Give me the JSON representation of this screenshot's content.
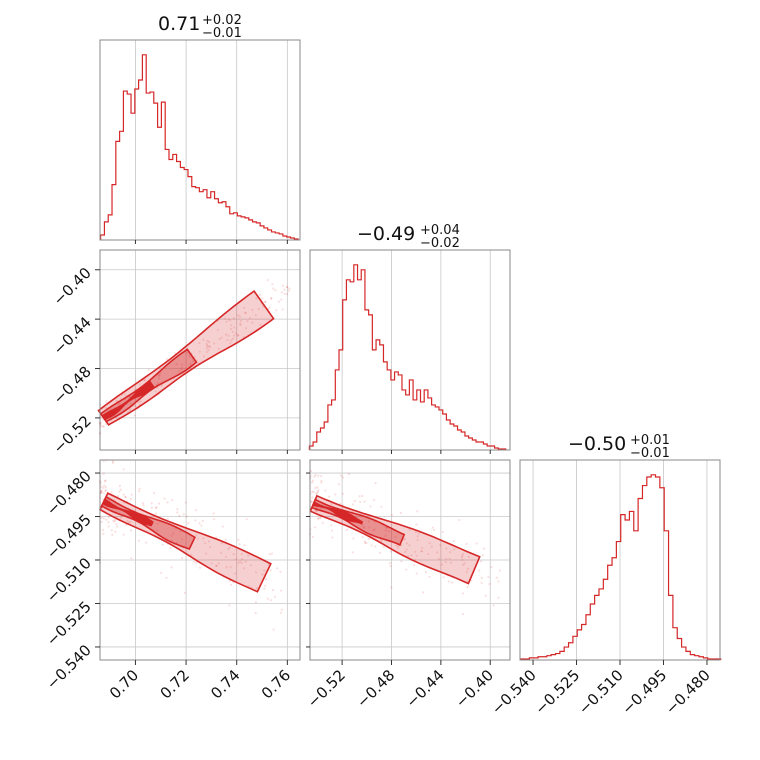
{
  "chart_data": {
    "type": "corner",
    "accent_color": "#d62728",
    "parameters": [
      {
        "title_main": "0.71",
        "title_plus": "+0.02",
        "title_minus": "−0.01",
        "range": [
          0.686,
          0.765
        ],
        "ticks": [
          0.7,
          0.72,
          0.74,
          0.76
        ],
        "tick_labels": [
          "0.70",
          "0.72",
          "0.74",
          "0.76"
        ],
        "hist_x": [
          0.687,
          0.6885,
          0.69,
          0.6915,
          0.693,
          0.6945,
          0.696,
          0.6975,
          0.699,
          0.7005,
          0.702,
          0.7035,
          0.705,
          0.7065,
          0.708,
          0.7095,
          0.711,
          0.7125,
          0.714,
          0.7155,
          0.717,
          0.7185,
          0.72,
          0.7215,
          0.723,
          0.7245,
          0.726,
          0.7275,
          0.729,
          0.7305,
          0.732,
          0.7335,
          0.735,
          0.7365,
          0.738,
          0.7395,
          0.741,
          0.7425,
          0.744,
          0.7455,
          0.747,
          0.7485,
          0.75,
          0.7515,
          0.753,
          0.7545,
          0.756,
          0.7575,
          0.759,
          0.7605,
          0.762,
          0.7635
        ],
        "hist_y": [
          5,
          18,
          25,
          55,
          98,
          108,
          148,
          145,
          126,
          150,
          159,
          184,
          146,
          147,
          136,
          112,
          137,
          90,
          80,
          85,
          78,
          72,
          70,
          63,
          53,
          52,
          48,
          50,
          42,
          48,
          41,
          37,
          38,
          33,
          26,
          27,
          24,
          23,
          22,
          20,
          18,
          17,
          14,
          12,
          10,
          8,
          7,
          6,
          4,
          3,
          2,
          1
        ]
      },
      {
        "title_main": "−0.49",
        "title_plus": "+0.04",
        "title_minus": "−0.02",
        "range": [
          -0.546,
          -0.384
        ],
        "ticks": [
          -0.52,
          -0.48,
          -0.44,
          -0.4
        ],
        "tick_labels": [
          "−0.52",
          "−0.48",
          "−0.44",
          "−0.40"
        ],
        "hist_x": [
          -0.545,
          -0.542,
          -0.539,
          -0.536,
          -0.533,
          -0.53,
          -0.527,
          -0.524,
          -0.521,
          -0.518,
          -0.515,
          -0.512,
          -0.509,
          -0.506,
          -0.503,
          -0.5,
          -0.497,
          -0.494,
          -0.491,
          -0.488,
          -0.485,
          -0.482,
          -0.479,
          -0.476,
          -0.473,
          -0.47,
          -0.467,
          -0.464,
          -0.461,
          -0.458,
          -0.455,
          -0.452,
          -0.449,
          -0.446,
          -0.443,
          -0.44,
          -0.437,
          -0.434,
          -0.431,
          -0.428,
          -0.425,
          -0.422,
          -0.419,
          -0.416,
          -0.413,
          -0.41,
          -0.407,
          -0.404,
          -0.401,
          -0.398,
          -0.395,
          -0.392,
          -0.389
        ],
        "hist_y": [
          4,
          8,
          18,
          22,
          28,
          45,
          50,
          80,
          100,
          150,
          170,
          168,
          185,
          170,
          180,
          140,
          135,
          100,
          110,
          105,
          88,
          80,
          70,
          78,
          75,
          60,
          55,
          70,
          50,
          60,
          48,
          60,
          52,
          45,
          43,
          40,
          36,
          30,
          26,
          24,
          20,
          18,
          14,
          12,
          10,
          8,
          8,
          6,
          4,
          4,
          2,
          1,
          1
        ]
      },
      {
        "title_main": "−0.50",
        "title_plus": "+0.01",
        "title_minus": "−0.01",
        "range": [
          -0.5445,
          -0.4755
        ],
        "ticks": [
          -0.54,
          -0.525,
          -0.51,
          -0.495,
          -0.48
        ],
        "tick_labels": [
          "−0.540",
          "−0.525",
          "−0.510",
          "−0.495",
          "−0.480"
        ],
        "hist_x": [
          -0.5435,
          -0.542,
          -0.5405,
          -0.539,
          -0.5375,
          -0.536,
          -0.5345,
          -0.533,
          -0.5315,
          -0.53,
          -0.5285,
          -0.527,
          -0.5255,
          -0.524,
          -0.5225,
          -0.521,
          -0.5195,
          -0.518,
          -0.5165,
          -0.515,
          -0.5135,
          -0.512,
          -0.5105,
          -0.509,
          -0.5075,
          -0.506,
          -0.5045,
          -0.503,
          -0.5015,
          -0.5,
          -0.4985,
          -0.497,
          -0.4955,
          -0.494,
          -0.4925,
          -0.491,
          -0.4895,
          -0.488,
          -0.4865,
          -0.485,
          -0.4835,
          -0.482,
          -0.4805,
          -0.479,
          -0.4775,
          -0.476
        ],
        "hist_y": [
          1,
          1,
          2,
          2,
          3,
          3,
          4,
          5,
          6,
          8,
          12,
          16,
          22,
          28,
          33,
          42,
          52,
          60,
          66,
          75,
          88,
          95,
          110,
          135,
          130,
          138,
          120,
          150,
          162,
          170,
          172,
          170,
          160,
          120,
          60,
          30,
          20,
          12,
          8,
          5,
          4,
          3,
          2,
          1,
          1,
          1
        ]
      }
    ],
    "pairs": [
      {
        "row": 1,
        "col": 0,
        "slope": 1.45,
        "x0": 0.705,
        "y0": -0.495,
        "width": 0.0035
      },
      {
        "row": 2,
        "col": 0,
        "slope": -0.42,
        "x0": 0.705,
        "y0": -0.497,
        "width": 0.0035
      },
      {
        "row": 2,
        "col": 1,
        "slope": -0.18,
        "x0": -0.505,
        "y0": -0.497,
        "width": 0.0035
      }
    ]
  }
}
